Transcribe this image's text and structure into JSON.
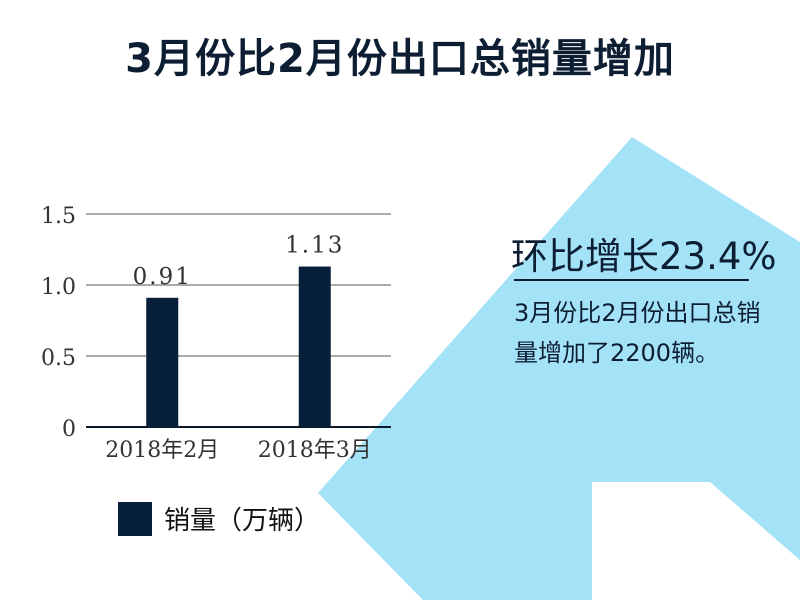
{
  "title": "3月份比2月份出口总销量增加",
  "colors": {
    "bar": "#071f38",
    "arrow": "#a3e2f7",
    "text_dark": "#0d1e33"
  },
  "callout": {
    "headline": "环比增长23.4%",
    "body": "3月份比2月份出口总销量增加了2200辆。"
  },
  "chart_data": {
    "type": "bar",
    "categories": [
      "2018年2月",
      "2018年3月"
    ],
    "series": [
      {
        "name": "销量（万辆）",
        "values": [
          0.91,
          1.13
        ]
      }
    ],
    "data_labels": [
      "0.91",
      "1.13"
    ],
    "y_ticks": [
      "0",
      "0.5",
      "1.0",
      "1.5"
    ],
    "ylim": [
      0,
      1.5
    ],
    "grid": true,
    "legend_position": "bottom-left",
    "title": "",
    "xlabel": "",
    "ylabel": ""
  }
}
